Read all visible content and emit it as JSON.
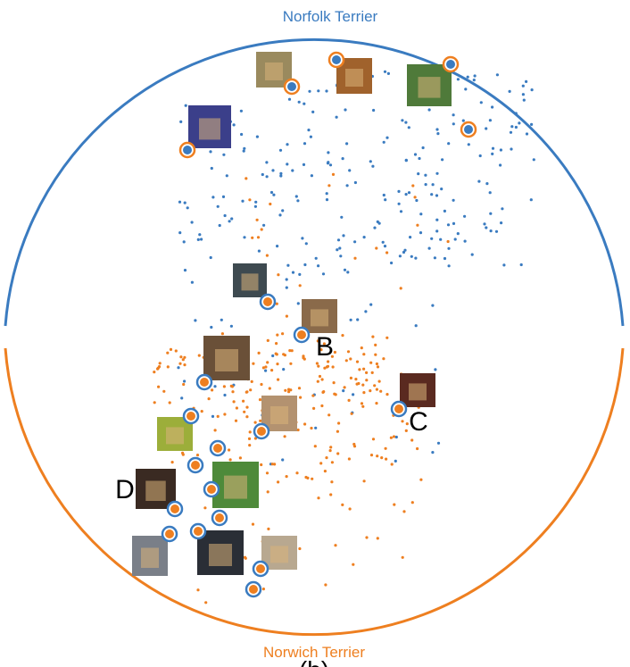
{
  "top_label": "Norfolk Terrier",
  "bottom_label": "Norwich Terrier",
  "point_labels": [
    "B",
    "C",
    "D"
  ],
  "caption": "(b)"
}
